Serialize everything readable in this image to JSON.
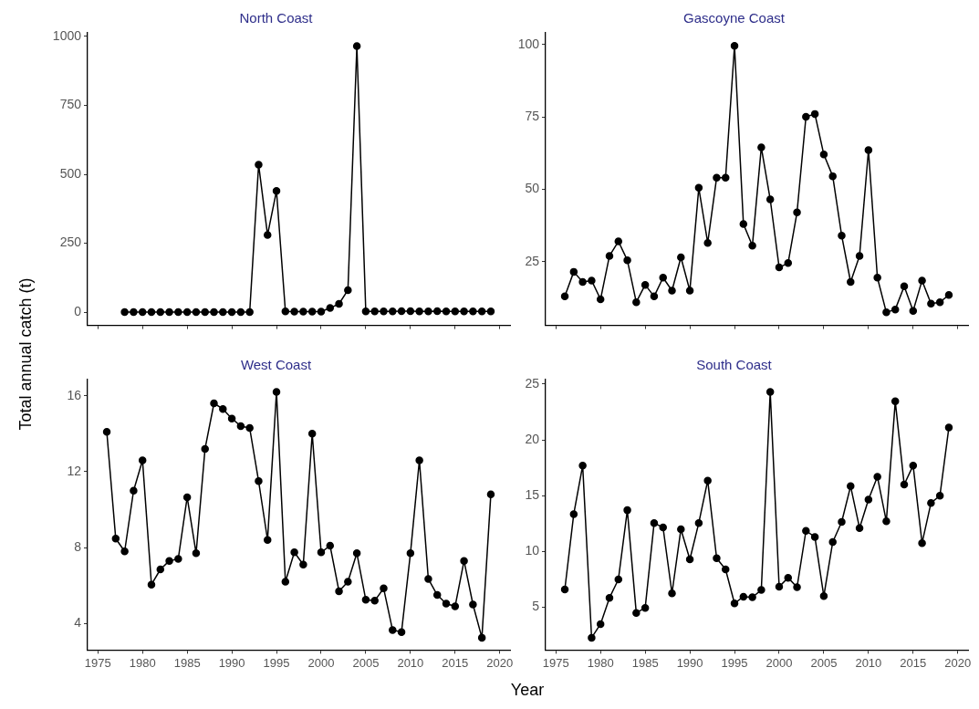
{
  "chart_data": [
    {
      "type": "line",
      "title": "North Coast",
      "ylabel": "Total annual catch (t)",
      "xlabel": "Year",
      "tick_labels": "y",
      "grid": false,
      "legend": false,
      "marker": "circle",
      "line_style": "solid",
      "xlim": [
        1973.85,
        2021.15
      ],
      "xticks": [
        1975,
        1980,
        1985,
        1990,
        1995,
        2000,
        2005,
        2010,
        2015,
        2020
      ],
      "ylim": [
        -48,
        1013
      ],
      "yticks": [
        0,
        250,
        500,
        750,
        1000
      ],
      "x": [
        1978,
        1979,
        1980,
        1981,
        1982,
        1983,
        1984,
        1985,
        1986,
        1987,
        1988,
        1989,
        1990,
        1991,
        1992,
        1993,
        1994,
        1995,
        1996,
        1997,
        1998,
        1999,
        2000,
        2001,
        2002,
        2003,
        2004,
        2005,
        2006,
        2007,
        2008,
        2009,
        2010,
        2011,
        2012,
        2013,
        2014,
        2015,
        2016,
        2017,
        2018,
        2019
      ],
      "series": [
        {
          "color": "#000000",
          "values": [
            0,
            0,
            0,
            0,
            0,
            0,
            0,
            0,
            0,
            0,
            0,
            0,
            0,
            0,
            0,
            535,
            280,
            440,
            3,
            2,
            2,
            2,
            2,
            15,
            30,
            80,
            965,
            3,
            3,
            3,
            3,
            4,
            4,
            3,
            3,
            4,
            3,
            3,
            3,
            3,
            3,
            3
          ]
        }
      ]
    },
    {
      "type": "line",
      "title": "Gascoyne Coast",
      "tick_labels": "y",
      "grid": false,
      "legend": false,
      "marker": "circle",
      "line_style": "solid",
      "xlim": [
        1973.85,
        2021.15
      ],
      "xticks": [
        1975,
        1980,
        1985,
        1990,
        1995,
        2000,
        2005,
        2010,
        2015,
        2020
      ],
      "ylim": [
        3,
        104
      ],
      "yticks": [
        25,
        50,
        75,
        100
      ],
      "x": [
        1976,
        1977,
        1978,
        1979,
        1980,
        1981,
        1982,
        1983,
        1984,
        1985,
        1986,
        1987,
        1988,
        1989,
        1990,
        1991,
        1992,
        1993,
        1994,
        1995,
        1996,
        1997,
        1998,
        1999,
        2000,
        2001,
        2002,
        2003,
        2004,
        2005,
        2006,
        2007,
        2008,
        2009,
        2010,
        2011,
        2012,
        2013,
        2014,
        2015,
        2016,
        2017,
        2018,
        2019
      ],
      "series": [
        {
          "color": "#000000",
          "values": [
            13,
            21.5,
            18,
            18.5,
            12,
            27,
            32,
            25.5,
            11,
            17,
            13,
            19.5,
            15,
            26.5,
            15,
            50.5,
            31.5,
            54,
            54,
            99.5,
            38,
            30.5,
            64.5,
            46.5,
            23,
            24.5,
            42,
            75,
            76,
            62,
            54.5,
            34,
            18,
            27,
            63.5,
            19.5,
            7.5,
            8.5,
            16.5,
            8,
            18.5,
            10.5,
            11,
            13.5
          ]
        }
      ]
    },
    {
      "type": "line",
      "title": "West Coast",
      "grid": false,
      "legend": false,
      "marker": "circle",
      "line_style": "solid",
      "xlim": [
        1973.85,
        2021.15
      ],
      "xticks": [
        1975,
        1980,
        1985,
        1990,
        1995,
        2000,
        2005,
        2010,
        2015,
        2020
      ],
      "ylim": [
        2.6,
        16.85
      ],
      "yticks": [
        4,
        8,
        12,
        16
      ],
      "x": [
        1976,
        1977,
        1978,
        1979,
        1980,
        1981,
        1982,
        1983,
        1984,
        1985,
        1986,
        1987,
        1988,
        1989,
        1990,
        1991,
        1992,
        1993,
        1994,
        1995,
        1996,
        1997,
        1998,
        1999,
        2000,
        2001,
        2002,
        2003,
        2004,
        2005,
        2006,
        2007,
        2008,
        2009,
        2010,
        2011,
        2012,
        2013,
        2014,
        2015,
        2016,
        2017,
        2018,
        2019
      ],
      "series": [
        {
          "color": "#000000",
          "values": [
            14.1,
            8.47,
            7.8,
            11.0,
            12.6,
            6.05,
            6.85,
            7.3,
            7.4,
            10.65,
            7.7,
            13.2,
            15.6,
            15.3,
            14.8,
            14.4,
            14.3,
            11.5,
            8.4,
            16.2,
            6.2,
            7.75,
            7.1,
            14.0,
            7.75,
            8.1,
            5.7,
            6.2,
            7.7,
            5.25,
            5.2,
            5.85,
            3.65,
            3.55,
            7.7,
            12.6,
            6.35,
            5.5,
            5.05,
            4.9,
            7.3,
            5.0,
            3.25,
            10.8
          ]
        }
      ]
    },
    {
      "type": "line",
      "title": "South Coast",
      "grid": false,
      "legend": false,
      "marker": "circle",
      "line_style": "solid",
      "xlim": [
        1973.85,
        2021.15
      ],
      "xticks": [
        1975,
        1980,
        1985,
        1990,
        1995,
        2000,
        2005,
        2010,
        2015,
        2020
      ],
      "ylim": [
        1.17,
        25.4
      ],
      "yticks": [
        5,
        10,
        15,
        20,
        25
      ],
      "x": [
        1976,
        1977,
        1978,
        1979,
        1980,
        1981,
        1982,
        1983,
        1984,
        1985,
        1986,
        1987,
        1988,
        1989,
        1990,
        1991,
        1992,
        1993,
        1994,
        1995,
        1996,
        1997,
        1998,
        1999,
        2000,
        2001,
        2002,
        2003,
        2004,
        2005,
        2006,
        2007,
        2008,
        2009,
        2010,
        2011,
        2012,
        2013,
        2014,
        2015,
        2016,
        2017,
        2018,
        2019
      ],
      "series": [
        {
          "color": "#000000",
          "values": [
            6.6,
            13.35,
            17.7,
            2.27,
            3.5,
            5.85,
            7.5,
            13.7,
            4.5,
            4.95,
            12.55,
            12.15,
            6.25,
            12.0,
            9.3,
            12.55,
            16.35,
            9.4,
            8.4,
            5.35,
            5.95,
            5.9,
            6.55,
            24.3,
            6.85,
            7.65,
            6.8,
            11.85,
            11.3,
            6.0,
            10.85,
            12.65,
            15.85,
            12.1,
            14.65,
            16.7,
            12.7,
            23.45,
            16.0,
            17.7,
            10.75,
            14.35,
            15.0,
            21.1
          ]
        }
      ]
    }
  ]
}
